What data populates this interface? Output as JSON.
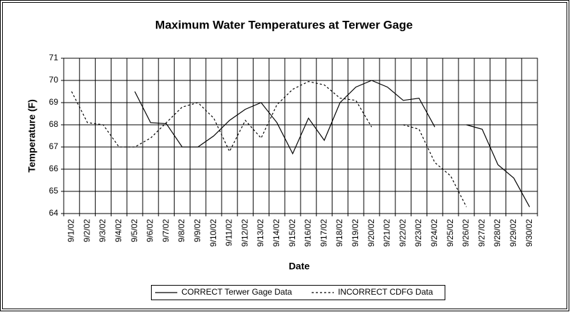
{
  "chart_data": {
    "type": "line",
    "title": "Maximum Water Temperatures at Terwer Gage",
    "x_label": "Date",
    "y_label": "Temperature (F)",
    "categories": [
      "9/1/02",
      "9/2/02",
      "9/3/02",
      "9/4/02",
      "9/5/02",
      "9/6/02",
      "9/7/02",
      "9/8/02",
      "9/9/02",
      "9/10/02",
      "9/11/02",
      "9/12/02",
      "9/13/02",
      "9/14/02",
      "9/15/02",
      "9/16/02",
      "9/17/02",
      "9/18/02",
      "9/19/02",
      "9/20/02",
      "9/21/02",
      "9/22/02",
      "9/23/02",
      "9/24/02",
      "9/25/02",
      "9/26/02",
      "9/27/02",
      "9/28/02",
      "9/29/02",
      "9/30/02"
    ],
    "series": [
      {
        "name": "CORRECT Terwer Gage Data",
        "color": "#000000",
        "style": "solid",
        "values": [
          null,
          null,
          null,
          null,
          69.5,
          68.1,
          68.05,
          67.0,
          67.0,
          67.5,
          68.2,
          68.7,
          69.0,
          68.1,
          66.7,
          68.3,
          67.3,
          69.0,
          69.7,
          70.0,
          69.7,
          69.1,
          69.2,
          67.9,
          null,
          68.0,
          67.8,
          66.2,
          65.6,
          64.3
        ]
      },
      {
        "name": "INCORRECT CDFG Data",
        "color": "#000000",
        "style": "dotted",
        "values": [
          69.5,
          68.1,
          68.0,
          67.0,
          67.0,
          67.4,
          68.1,
          68.8,
          69.0,
          68.3,
          66.8,
          68.2,
          67.4,
          68.9,
          69.6,
          69.95,
          69.8,
          69.2,
          69.1,
          67.9,
          null,
          68.0,
          67.8,
          66.3,
          65.7,
          64.3,
          null,
          null,
          null,
          null
        ]
      }
    ],
    "ylim": [
      64,
      71
    ],
    "yticks": [
      64,
      65,
      66,
      67,
      68,
      69,
      70,
      71
    ],
    "grid": true,
    "legend": "bottom"
  }
}
